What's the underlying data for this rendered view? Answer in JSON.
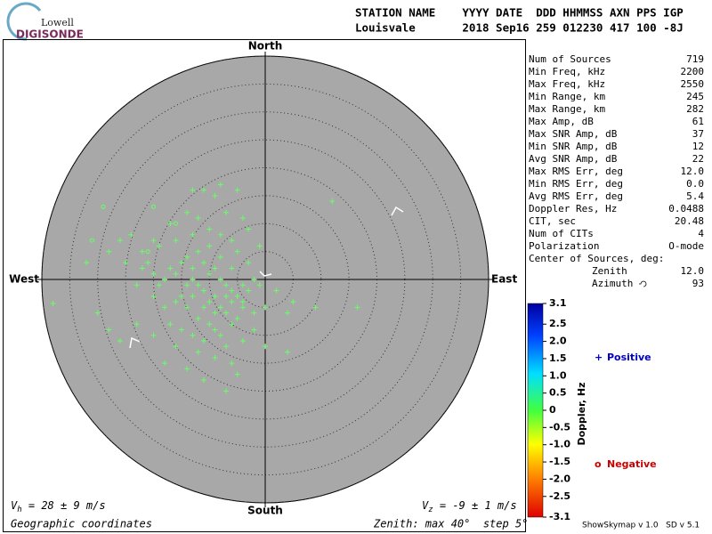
{
  "logo": {
    "top": "Lowell",
    "bottom": "DIGISONDE"
  },
  "header": {
    "labels": "STATION NAME    YYYY DATE  DDD HHMMSS AXN PPS IGP",
    "values": "Louisvale       2018 Sep16 259 012230 417 100 -8J"
  },
  "stats": [
    [
      "Num of Sources",
      "719"
    ],
    [
      "Min Freq, kHz",
      "2200"
    ],
    [
      "Max Freq, kHz",
      "2550"
    ],
    [
      "Min Range, km",
      "245"
    ],
    [
      "Max Range, km",
      "282"
    ],
    [
      "Max Amp, dB",
      "61"
    ],
    [
      "Max SNR Amp, dB",
      "37"
    ],
    [
      "Min SNR Amp, dB",
      "12"
    ],
    [
      "Avg SNR Amp, dB",
      "22"
    ],
    [
      "Max RMS Err, deg",
      "12.0"
    ],
    [
      "Min RMS Err, deg",
      "0.0"
    ],
    [
      "Avg RMS Err, deg",
      "5.4"
    ],
    [
      "Doppler Res, Hz",
      "0.0488"
    ],
    [
      "CIT, sec",
      "20.48"
    ],
    [
      "Num of CITs",
      "4"
    ],
    [
      "Polarization",
      "O-mode"
    ]
  ],
  "center": {
    "title": "Center of Sources, deg:",
    "rows": [
      [
        "Zenith",
        "12.0"
      ],
      [
        "Azimuth",
        "93"
      ]
    ]
  },
  "chart_data": {
    "type": "skymap",
    "directions": {
      "north": "North",
      "south": "South",
      "west": "West",
      "east": "East"
    },
    "rlim": [
      0,
      40
    ],
    "rticks": [
      5,
      10,
      15,
      20,
      25,
      30,
      35,
      40
    ],
    "series": [
      {
        "name": "Positive",
        "color": "#0000cc",
        "mark_color": "#66ff66",
        "marker": "+",
        "x": [
          -15,
          -14,
          -13,
          -12,
          -11,
          -10,
          -9,
          -8,
          -7,
          -6,
          -9,
          -10,
          -8,
          -7,
          -6,
          -5,
          -4,
          -11,
          -12,
          -13,
          -14,
          -16,
          -17,
          -18,
          -19,
          -20,
          -21,
          -22,
          -15,
          -16,
          -14,
          -12,
          -10,
          -9,
          -8,
          -11,
          -7,
          -6,
          -5,
          -4,
          -3,
          -2,
          -1,
          -3,
          -5,
          -6,
          -8,
          -10,
          -13,
          -16,
          -19,
          -24,
          -22,
          -25,
          -23,
          -20,
          -18,
          -17,
          -15,
          -13,
          -12,
          -9,
          -6,
          -5,
          -14,
          -18,
          -11,
          -7,
          -4,
          -2,
          0,
          0,
          2,
          4,
          5,
          9,
          4,
          -1,
          -3,
          -4,
          -7,
          -12,
          -14,
          -9,
          -13,
          -17,
          -20,
          -26,
          -28,
          -32,
          -38,
          -30,
          -28,
          -26,
          -11,
          -8,
          -5,
          12,
          -16,
          -20,
          -23,
          -10,
          -8,
          -6,
          -4,
          -2,
          -7,
          -9,
          -11,
          -13,
          16.5
        ],
        "y": [
          3,
          4,
          2,
          5,
          3,
          1,
          2,
          0,
          -1,
          -2,
          -3,
          -4,
          -5,
          -6,
          -4,
          -3,
          -1,
          -2,
          -1,
          0,
          -1,
          1,
          2,
          0,
          -1,
          1,
          3,
          2,
          -3,
          -4,
          -5,
          -7,
          -8,
          -9,
          -10,
          -11,
          -12,
          -8,
          -7,
          -5,
          -2,
          0,
          -1,
          3,
          5,
          7,
          8,
          9,
          8,
          7,
          6,
          8,
          5,
          3,
          -1,
          -3,
          -5,
          -8,
          -9,
          -10,
          -13,
          -14,
          -15,
          -17,
          -16,
          -15,
          -18,
          -20,
          -11,
          -9,
          -12,
          -5,
          -2,
          -6,
          -4,
          -5,
          -13,
          6,
          9,
          11,
          12,
          11,
          12,
          15,
          16,
          10,
          7,
          7,
          5,
          3,
          -4.3,
          -6,
          -9,
          -11,
          16,
          17,
          16,
          14,
          -12,
          -10,
          -8,
          6,
          4,
          2,
          -4,
          -6,
          -3,
          -6,
          -5,
          -3,
          -5
        ]
      },
      {
        "name": "Negative",
        "color": "#cc0000",
        "mark_color": "#66ff66",
        "marker": "o",
        "x": [
          -29,
          -16,
          -21,
          -31,
          -20
        ],
        "y": [
          13,
          10,
          5,
          7,
          13
        ]
      }
    ],
    "colorbar": {
      "label": "Doppler, Hz",
      "lim": [
        -3.1,
        3.1
      ],
      "ticks": [
        3.1,
        2.5,
        {
          "value": 2,
          "label": "2.0"
        },
        1.5,
        {
          "value": 1,
          "label": "1.0"
        },
        0.5,
        0,
        -0.5,
        {
          "value": -1,
          "label": "-1.0"
        },
        -1.5,
        {
          "value": -2,
          "label": "-2.0"
        },
        -2.5,
        -3.1
      ]
    }
  },
  "footer": {
    "vh": {
      "symbol": "V",
      "sub": "h",
      "text": " = 28 ± 9 m/s"
    },
    "vz": {
      "symbol": "V",
      "sub": "z",
      "text": " = -9 ± 1 m/s"
    },
    "coords": "Geographic coordinates",
    "zenith": "Zenith: max 40°  step 5°",
    "version": "ShowSkymap v 1.0   SD v 5.1"
  }
}
